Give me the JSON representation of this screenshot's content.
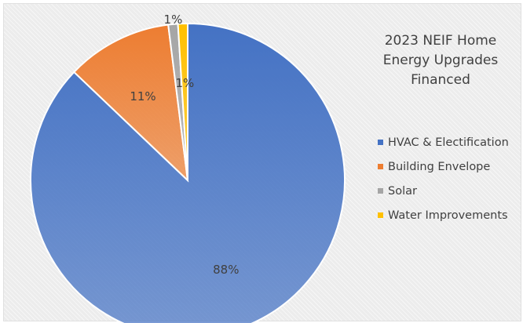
{
  "chart_data": {
    "type": "pie",
    "title": "2023 NEIF Home Energy Upgrades Financed",
    "legend_position": "right",
    "slices": [
      {
        "label": "HVAC & Electification",
        "value": 88,
        "display": "88%",
        "color": "#4472c4"
      },
      {
        "label": "Building Envelope",
        "value": 11,
        "display": "11%",
        "color": "#ed7d31"
      },
      {
        "label": "Solar",
        "value": 1,
        "display": "1%",
        "color": "#a5a5a5"
      },
      {
        "label": "Water Improvements",
        "value": 1,
        "display": "1%",
        "color": "#ffc000"
      }
    ]
  }
}
